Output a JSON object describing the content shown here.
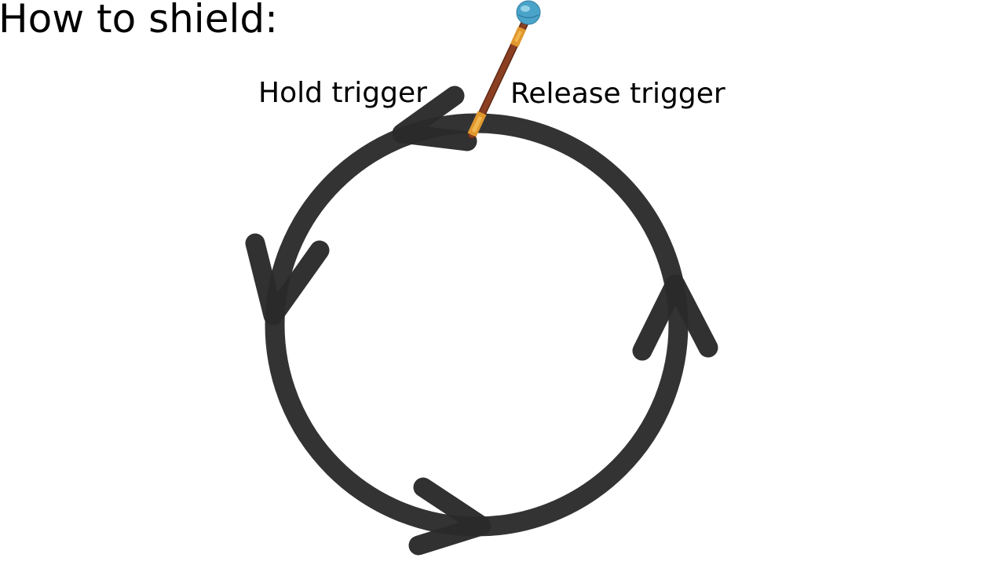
{
  "title": "How to shield:",
  "labels": {
    "hold": "Hold trigger",
    "release": "Release trigger"
  },
  "motion": {
    "shape": "circle",
    "direction": "counter-clockwise",
    "arrow_count": 4
  },
  "wand": {
    "icon": "magic-wand-icon"
  },
  "colors": {
    "background": "#ffffff",
    "text": "#000000",
    "stroke": "#333333",
    "arrow": "#2a2a2a",
    "wand_shaft": "#8b3f22",
    "wand_band": "#e0982e",
    "wand_orb": "#4aa3c9"
  }
}
